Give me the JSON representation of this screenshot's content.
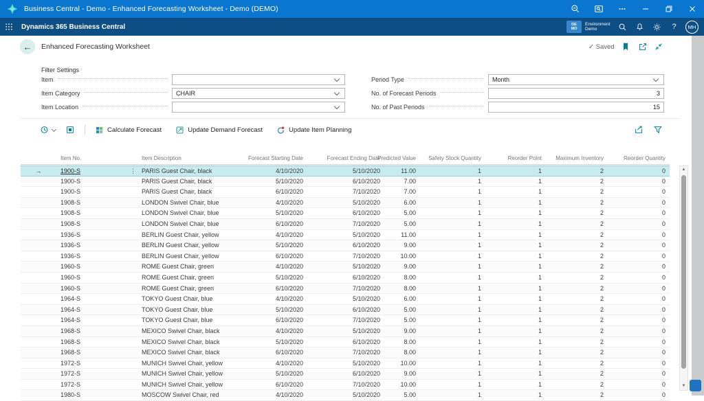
{
  "colors": {
    "titlebar_blue": "#0b76d0",
    "navbar_blue": "#0d4e84",
    "accent_teal": "#00828c",
    "selected_row_bg": "#c7ebee",
    "environment_badge_blue": "#3886cd"
  },
  "titlebar": {
    "title": "Business Central - Demo - Enhanced Forecasting Worksheet - Demo (DEMO)",
    "icons": [
      "app-logo",
      "zoom-out",
      "search-in-window",
      "more",
      "minimize",
      "restore",
      "close"
    ]
  },
  "navbar": {
    "app_name": "Dynamics 365 Business Central",
    "environment_badge_line1": "DE",
    "environment_badge_line2": "MO",
    "environment_label": "Environment",
    "environment_name": "Demo",
    "avatar_initials": "MH",
    "help_label": "?",
    "icons": [
      "waffle",
      "search",
      "notifications",
      "settings",
      "help",
      "avatar"
    ]
  },
  "page_header": {
    "title": "Enhanced Forecasting Worksheet",
    "saved_check": "✓",
    "saved_label": "Saved",
    "icons": [
      "back-arrow",
      "bookmark",
      "open-in-new-window",
      "collapse"
    ]
  },
  "filters": {
    "group_label": "Filter Settings",
    "left": [
      {
        "label": "Item",
        "value": "",
        "control": "combo"
      },
      {
        "label": "Item Category",
        "value": "CHAIR",
        "control": "combo"
      },
      {
        "label": "Item Location",
        "value": "",
        "control": "combo"
      }
    ],
    "right": [
      {
        "label": "Period Type",
        "value": "Month",
        "control": "combo"
      },
      {
        "label": "No. of Forecast Periods",
        "value": "3",
        "control": "number"
      },
      {
        "label": "No. of Past Periods",
        "value": "15",
        "control": "number"
      }
    ]
  },
  "toolbar": {
    "buttons": [
      "Calculate Forecast",
      "Update Demand Forecast",
      "Update Item Planning"
    ],
    "icons_left": [
      "view-options",
      "analysis-mode"
    ],
    "icons_right": [
      "share",
      "filter"
    ]
  },
  "table": {
    "columns": [
      "Item No.",
      "Item Description",
      "Forecast Starting Date",
      "Forecast Ending Date",
      "Predicted Value",
      "Safety Stock Quantity",
      "Reorder Point",
      "Maximum Inventory",
      "Reorder Quantity"
    ],
    "column_keys": [
      "item_no",
      "item_description",
      "forecast_starting_date",
      "forecast_ending_date",
      "predicted_value",
      "safety_stock_quantity",
      "reorder_point",
      "maximum_inventory",
      "reorder_quantity"
    ],
    "selected_row_index": 0,
    "selected_row_marker": "→",
    "row_menu_glyph": "⋮",
    "rows": [
      [
        "1900-S",
        "PARIS Guest Chair, black",
        "4/10/2020",
        "5/10/2020",
        "11.00",
        "1",
        "1",
        "2",
        "0"
      ],
      [
        "1900-S",
        "PARIS Guest Chair, black",
        "5/10/2020",
        "6/10/2020",
        "7.00",
        "1",
        "1",
        "2",
        "0"
      ],
      [
        "1900-S",
        "PARIS Guest Chair, black",
        "6/10/2020",
        "7/10/2020",
        "7.00",
        "1",
        "1",
        "2",
        "0"
      ],
      [
        "1908-S",
        "LONDON Swivel Chair, blue",
        "4/10/2020",
        "5/10/2020",
        "6.00",
        "1",
        "1",
        "2",
        "0"
      ],
      [
        "1908-S",
        "LONDON Swivel Chair, blue",
        "5/10/2020",
        "6/10/2020",
        "5.00",
        "1",
        "1",
        "2",
        "0"
      ],
      [
        "1908-S",
        "LONDON Swivel Chair, blue",
        "6/10/2020",
        "7/10/2020",
        "5.00",
        "1",
        "1",
        "2",
        "0"
      ],
      [
        "1936-S",
        "BERLIN Guest Chair, yellow",
        "4/10/2020",
        "5/10/2020",
        "11.00",
        "1",
        "1",
        "2",
        "0"
      ],
      [
        "1936-S",
        "BERLIN Guest Chair, yellow",
        "5/10/2020",
        "6/10/2020",
        "9.00",
        "1",
        "1",
        "2",
        "0"
      ],
      [
        "1936-S",
        "BERLIN Guest Chair, yellow",
        "6/10/2020",
        "7/10/2020",
        "10.00",
        "1",
        "1",
        "2",
        "0"
      ],
      [
        "1960-S",
        "ROME Guest Chair, green",
        "4/10/2020",
        "5/10/2020",
        "9.00",
        "1",
        "1",
        "2",
        "0"
      ],
      [
        "1960-S",
        "ROME Guest Chair, green",
        "5/10/2020",
        "6/10/2020",
        "8.00",
        "1",
        "1",
        "2",
        "0"
      ],
      [
        "1960-S",
        "ROME Guest Chair, green",
        "6/10/2020",
        "7/10/2020",
        "8.00",
        "1",
        "1",
        "2",
        "0"
      ],
      [
        "1964-S",
        "TOKYO Guest Chair, blue",
        "4/10/2020",
        "5/10/2020",
        "6.00",
        "1",
        "1",
        "2",
        "0"
      ],
      [
        "1964-S",
        "TOKYO Guest Chair, blue",
        "5/10/2020",
        "6/10/2020",
        "5.00",
        "1",
        "1",
        "2",
        "0"
      ],
      [
        "1964-S",
        "TOKYO Guest Chair, blue",
        "6/10/2020",
        "7/10/2020",
        "5.00",
        "1",
        "1",
        "2",
        "0"
      ],
      [
        "1968-S",
        "MEXICO Swivel Chair, black",
        "4/10/2020",
        "5/10/2020",
        "9.00",
        "1",
        "1",
        "2",
        "0"
      ],
      [
        "1968-S",
        "MEXICO Swivel Chair, black",
        "5/10/2020",
        "6/10/2020",
        "8.00",
        "1",
        "1",
        "2",
        "0"
      ],
      [
        "1968-S",
        "MEXICO Swivel Chair, black",
        "6/10/2020",
        "7/10/2020",
        "8.00",
        "1",
        "1",
        "2",
        "0"
      ],
      [
        "1972-S",
        "MUNICH Swivel Chair, yellow",
        "4/10/2020",
        "5/10/2020",
        "10.00",
        "1",
        "1",
        "2",
        "0"
      ],
      [
        "1972-S",
        "MUNICH Swivel Chair, yellow",
        "5/10/2020",
        "6/10/2020",
        "9.00",
        "1",
        "1",
        "2",
        "0"
      ],
      [
        "1972-S",
        "MUNICH Swivel Chair, yellow",
        "6/10/2020",
        "7/10/2020",
        "10.00",
        "1",
        "1",
        "2",
        "0"
      ],
      [
        "1980-S",
        "MOSCOW Swivel Chair, red",
        "4/10/2020",
        "5/10/2020",
        "5.00",
        "1",
        "1",
        "2",
        "0"
      ]
    ]
  }
}
